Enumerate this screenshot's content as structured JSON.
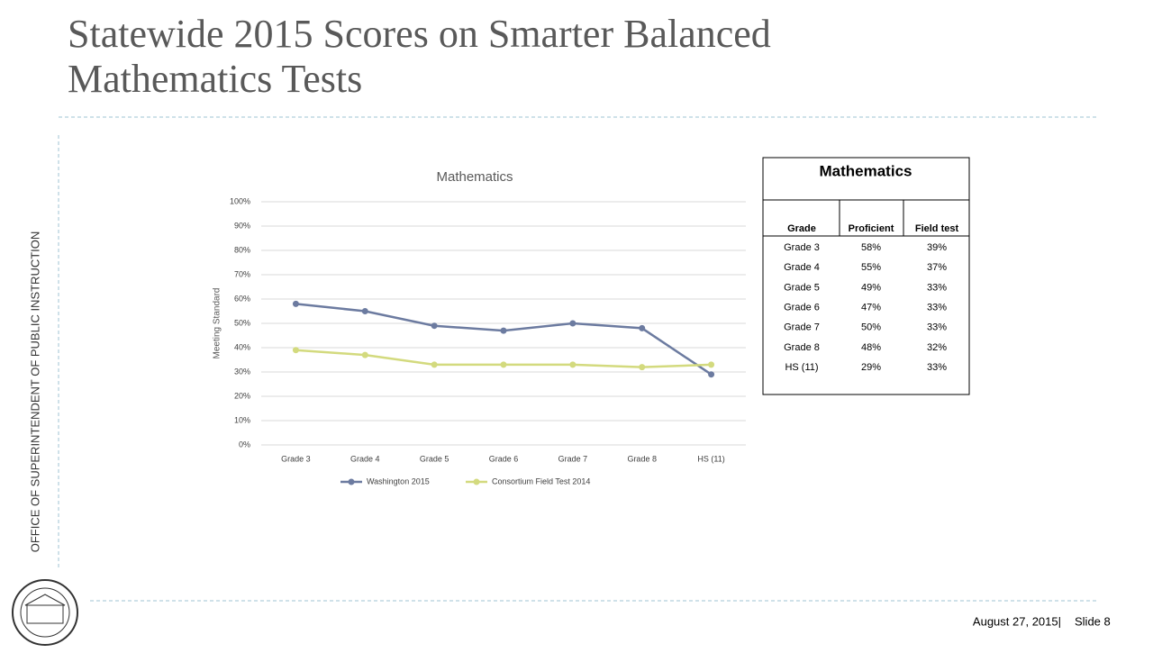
{
  "header": {
    "title_lines": [
      "Statewide 2015 Scores on Smarter Balanced",
      "Mathematics Tests"
    ]
  },
  "sidebar": {
    "text": "OFFICE OF SUPERINTENDENT OF PUBLIC INSTRUCTION"
  },
  "chart_data": {
    "type": "line",
    "title": "Mathematics",
    "y_label": "Meeting Standard",
    "categories": [
      "Grade 3",
      "Grade 4",
      "Grade 5",
      "Grade 6",
      "Grade 7",
      "Grade 8",
      "HS (11)"
    ],
    "series": [
      {
        "name": "Washington 2015",
        "color": "#6c7ba0",
        "values": [
          58,
          55,
          49,
          47,
          50,
          48,
          29
        ]
      },
      {
        "name": "Consortium Field Test 2014",
        "color": "#d3da7e",
        "values": [
          39,
          37,
          33,
          33,
          33,
          32,
          33
        ]
      }
    ],
    "ylim": [
      0,
      100
    ],
    "yticks": [
      {
        "value": 0,
        "label": "0%"
      },
      {
        "value": 10,
        "label": "10%"
      },
      {
        "value": 20,
        "label": "20%"
      },
      {
        "value": 30,
        "label": "30%"
      },
      {
        "value": 40,
        "label": "40%"
      },
      {
        "value": 50,
        "label": "50%"
      },
      {
        "value": 60,
        "label": "60%"
      },
      {
        "value": 70,
        "label": "70%"
      },
      {
        "value": 80,
        "label": "80%"
      },
      {
        "value": 90,
        "label": "90%"
      },
      {
        "value": 100,
        "label": "100%"
      }
    ],
    "grid": true,
    "legend": "bottom"
  },
  "table": {
    "title": "Mathematics",
    "columns": [
      "Grade",
      "Proficient",
      "Field test"
    ],
    "rows": [
      [
        "Grade 3",
        "58%",
        "39%"
      ],
      [
        "Grade 4",
        "55%",
        "37%"
      ],
      [
        "Grade 5",
        "49%",
        "33%"
      ],
      [
        "Grade 6",
        "47%",
        "33%"
      ],
      [
        "Grade 7",
        "50%",
        "33%"
      ],
      [
        "Grade 8",
        "48%",
        "32%"
      ],
      [
        "HS (11)",
        "29%",
        "33%"
      ]
    ]
  },
  "footer": {
    "date": "August 27, 2015|",
    "slide": "Slide 8"
  }
}
